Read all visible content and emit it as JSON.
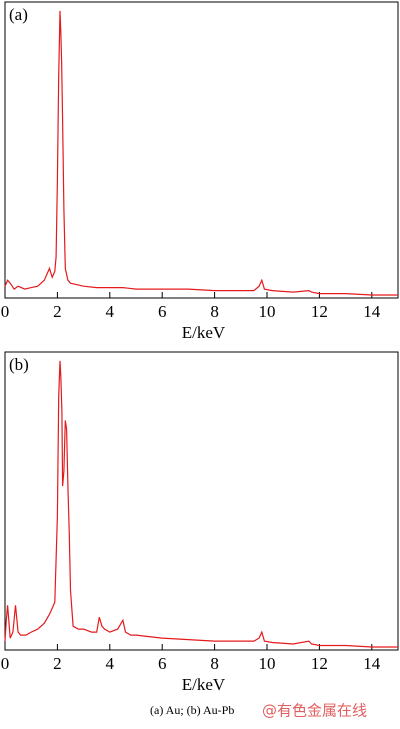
{
  "chart_data": [
    {
      "type": "line",
      "label": "(a)",
      "x_label": "E/keV",
      "xlim": [
        0,
        15
      ],
      "xticks": [
        0,
        2,
        4,
        6,
        8,
        10,
        12,
        14
      ],
      "ylim": [
        0,
        100
      ],
      "x": [
        0,
        0.1,
        0.2,
        0.35,
        0.5,
        0.75,
        1,
        1.25,
        1.5,
        1.6,
        1.7,
        1.8,
        1.9,
        1.95,
        2,
        2.05,
        2.1,
        2.13,
        2.16,
        2.2,
        2.25,
        2.3,
        2.4,
        2.5,
        2.75,
        3,
        3.5,
        4,
        4.5,
        5,
        6,
        7,
        8,
        9,
        9.5,
        9.7,
        9.8,
        9.9,
        10.2,
        11,
        11.6,
        11.7,
        12,
        13,
        14,
        15
      ],
      "series": [
        {
          "color": "#e41a1c",
          "values": [
            4,
            6,
            5,
            3,
            4,
            3,
            3.5,
            4,
            6,
            8,
            10,
            7,
            9,
            14,
            40,
            75,
            97,
            90,
            80,
            60,
            30,
            10,
            6,
            5,
            4.5,
            4,
            3.5,
            3.5,
            3.5,
            3,
            3,
            3,
            2.5,
            2.5,
            2.5,
            4,
            6,
            3,
            2.5,
            2,
            2.5,
            2,
            1.5,
            1.5,
            1,
            1
          ]
        }
      ]
    },
    {
      "type": "line",
      "label": "(b)",
      "x_label": "E/keV",
      "xlim": [
        0,
        15
      ],
      "xticks": [
        0,
        2,
        4,
        6,
        8,
        10,
        12,
        14
      ],
      "ylim": [
        0,
        100
      ],
      "x": [
        0,
        0.05,
        0.1,
        0.2,
        0.3,
        0.4,
        0.5,
        0.6,
        0.8,
        1,
        1.25,
        1.5,
        1.7,
        1.8,
        1.9,
        2,
        2.05,
        2.1,
        2.13,
        2.17,
        2.2,
        2.25,
        2.3,
        2.35,
        2.4,
        2.45,
        2.5,
        2.6,
        2.8,
        3,
        3.3,
        3.5,
        3.6,
        3.7,
        3.8,
        4,
        4.3,
        4.5,
        4.6,
        4.8,
        5,
        5.5,
        6,
        7,
        8,
        9,
        9.5,
        9.7,
        9.8,
        9.9,
        10.2,
        11,
        11.6,
        11.7,
        12,
        13,
        14,
        15
      ],
      "series": [
        {
          "color": "#e41a1c",
          "values": [
            3,
            10,
            15,
            4,
            6,
            15,
            6,
            5,
            5,
            6,
            7,
            9,
            12,
            14,
            16,
            45,
            85,
            97,
            92,
            80,
            55,
            60,
            77,
            74,
            55,
            40,
            20,
            8,
            7,
            7,
            6,
            6,
            11,
            8,
            7,
            6,
            7,
            10,
            6,
            5,
            5,
            4.5,
            4,
            3.5,
            3,
            3,
            3,
            4,
            6,
            3,
            2.5,
            2,
            3,
            2,
            1.5,
            1.5,
            1,
            1
          ]
        }
      ]
    }
  ],
  "caption": "(a) Au;   (b) Au-Pb",
  "watermark": "@有色金属在线"
}
